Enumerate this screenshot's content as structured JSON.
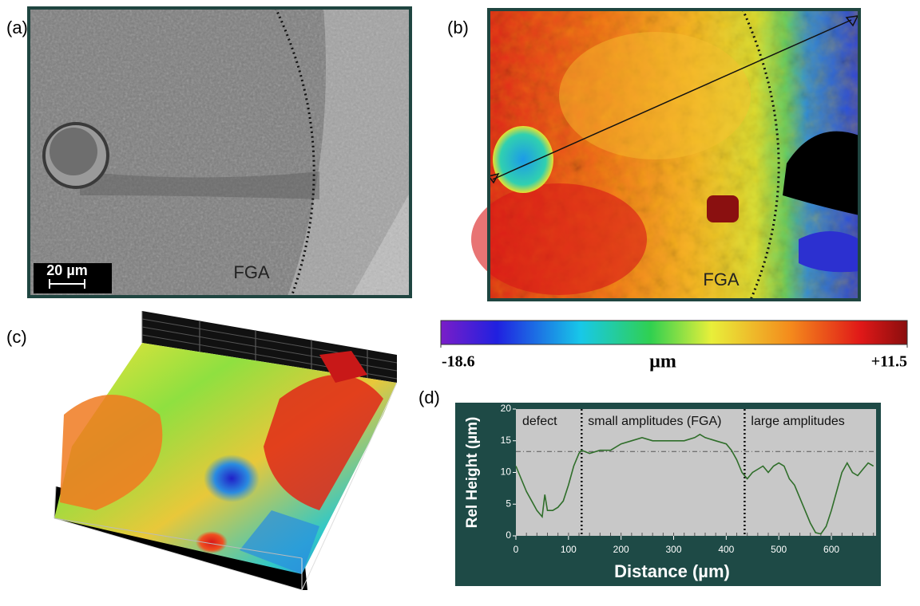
{
  "panels": {
    "a": {
      "label": "(a)",
      "scale_bar": "20 µm",
      "region": "FGA"
    },
    "b": {
      "label": "(b)",
      "region": "FGA"
    },
    "c": {
      "label": "(c)"
    },
    "d": {
      "label": "(d)"
    }
  },
  "colorbar": {
    "ticks": [
      -18.6,
      {
        "value": 11.5,
        "label": "+11.5"
      }
    ],
    "unit": "µm"
  },
  "chart_data": {
    "type": "line",
    "x_label": "Distance (µm)",
    "y_label": "Rel Height (µm)",
    "x": [
      0,
      10,
      20,
      30,
      40,
      50,
      55,
      60,
      70,
      80,
      90,
      100,
      110,
      120,
      125,
      140,
      160,
      180,
      200,
      220,
      240,
      260,
      280,
      300,
      320,
      340,
      350,
      360,
      380,
      400,
      410,
      420,
      430,
      440,
      450,
      460,
      470,
      480,
      490,
      500,
      510,
      520,
      530,
      540,
      550,
      560,
      570,
      580,
      590,
      600,
      610,
      620,
      630,
      640,
      650,
      660,
      670,
      680
    ],
    "series": [
      {
        "color": "#2f6e2a",
        "values": [
          11,
          9,
          7,
          5.5,
          4,
          3,
          6.5,
          4,
          4,
          4.5,
          5.5,
          8,
          11,
          13,
          13.5,
          13,
          13.5,
          13.5,
          14.5,
          15,
          15.5,
          15,
          15,
          15,
          15,
          15.5,
          16,
          15.5,
          15,
          14.5,
          13.5,
          12,
          10,
          9,
          10,
          10.5,
          11,
          10,
          11,
          11.5,
          11,
          9,
          8,
          6,
          4,
          2,
          0.5,
          0.3,
          1.5,
          4,
          7,
          10,
          11.5,
          10,
          9.5,
          10.5,
          11.5,
          11
        ]
      }
    ],
    "xlim": [
      0,
      685
    ],
    "ylim": [
      0,
      20
    ],
    "xticks": [
      0,
      100,
      200,
      300,
      400,
      500,
      600
    ],
    "yticks": [
      0,
      5,
      10,
      15,
      20
    ],
    "annotations": [
      "defect",
      "small amplitudes (FGA)",
      "large amplitudes"
    ],
    "vlines": [
      125,
      435
    ],
    "hline": 13.3
  }
}
